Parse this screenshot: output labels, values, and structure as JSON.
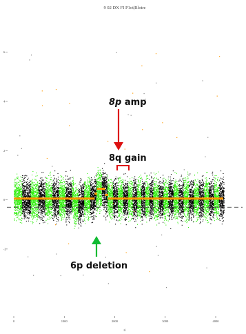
{
  "chart_data": {
    "type": "scatter",
    "title": "9 02 DX FI P1ot|Rlotre",
    "xlabel": "ri",
    "ylabel": "",
    "y_tick_labels": [
      "6",
      "4",
      "2",
      "0",
      "-2"
    ],
    "x_tick_labels": [
      "0",
      "1000",
      "2000",
      "3000",
      "4000"
    ],
    "xlim": [
      0,
      4300
    ],
    "ylim": [
      -4.5,
      7
    ],
    "baseline_value": -0.3,
    "grid": false,
    "legend": "none",
    "colors": {
      "chrom_alternate_a": "#000000",
      "chrom_alternate_b": "#33ee11",
      "segment": "#ff9900",
      "gain_arrow": "#dd1111",
      "loss_arrow": "#11bb33",
      "baseline": "#222222"
    },
    "chromosome_bins_x": [
      0,
      160,
      330,
      480,
      620,
      760,
      890,
      1020,
      1150,
      1270,
      1390,
      1510,
      1630,
      1740,
      1850,
      1960,
      2060,
      2160,
      2260,
      2350,
      2440,
      2520,
      2600,
      2680,
      2760,
      2860,
      2960,
      3060,
      3160,
      3260,
      3360,
      3460,
      3560,
      3660,
      3760,
      3860,
      3960,
      4060,
      4160
    ],
    "segments": [
      {
        "x": [
          0,
          1600
        ],
        "y": 0.05
      },
      {
        "x": [
          1600,
          1650
        ],
        "y": 0.25
      },
      {
        "x": [
          1650,
          1810
        ],
        "y": 0.45
      },
      {
        "x": [
          1810,
          1870
        ],
        "y": 0.2
      },
      {
        "x": [
          1870,
          4150
        ],
        "y": 0.05
      }
    ],
    "annotations": [
      {
        "text_italic": "8p",
        "text": " amp",
        "target_x": 1720,
        "kind": "gain"
      },
      {
        "text": "8q gain",
        "range_x": [
          1640,
          1860
        ],
        "kind": "gain"
      },
      {
        "text": "6p deletion",
        "target_x": 1650,
        "kind": "loss"
      }
    ]
  }
}
